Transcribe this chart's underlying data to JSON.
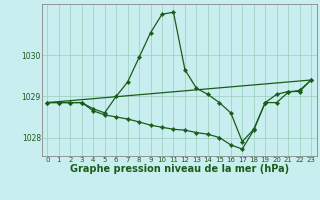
{
  "title": "Graphe pression niveau de la mer (hPa)",
  "background_color": "#c8eef0",
  "grid_color": "#99ccbb",
  "line_color": "#1a5c1a",
  "xlim": [
    -0.5,
    23.5
  ],
  "ylim": [
    1027.55,
    1031.25
  ],
  "yticks": [
    1028,
    1029,
    1030
  ],
  "xticks": [
    0,
    1,
    2,
    3,
    4,
    5,
    6,
    7,
    8,
    9,
    10,
    11,
    12,
    13,
    14,
    15,
    16,
    17,
    18,
    19,
    20,
    21,
    22,
    23
  ],
  "series": [
    {
      "x": [
        0,
        1,
        2,
        3,
        4,
        5,
        6,
        7,
        8,
        9,
        10,
        11,
        12,
        13,
        14,
        15,
        16,
        17,
        18,
        19,
        20,
        21,
        22,
        23
      ],
      "y": [
        1028.85,
        1028.85,
        1028.85,
        1028.85,
        1028.7,
        1028.6,
        1029.0,
        1029.35,
        1029.95,
        1030.55,
        1031.0,
        1031.05,
        1029.65,
        1029.2,
        1029.05,
        1028.85,
        1028.6,
        1027.9,
        1028.2,
        1028.85,
        1028.85,
        1029.1,
        1029.15,
        1029.4
      ]
    },
    {
      "x": [
        0,
        1,
        2,
        3,
        4,
        5,
        6,
        7,
        8,
        9,
        10,
        11,
        12,
        13,
        14,
        15,
        16,
        17,
        18,
        19,
        20,
        21,
        22,
        23
      ],
      "y": [
        1028.85,
        1028.85,
        1028.85,
        1028.85,
        1028.65,
        1028.55,
        1028.5,
        1028.45,
        1028.38,
        1028.3,
        1028.25,
        1028.2,
        1028.18,
        1028.12,
        1028.08,
        1028.0,
        1027.82,
        1027.72,
        1028.18,
        1028.85,
        1029.05,
        1029.12,
        1029.12,
        1029.4
      ]
    },
    {
      "x": [
        0,
        23
      ],
      "y": [
        1028.85,
        1029.4
      ]
    }
  ],
  "marker": "D",
  "markersize": 2.2,
  "linewidth": 0.9,
  "title_fontsize": 7,
  "tick_fontsize": 5.0,
  "label_color": "#1a5c1a"
}
